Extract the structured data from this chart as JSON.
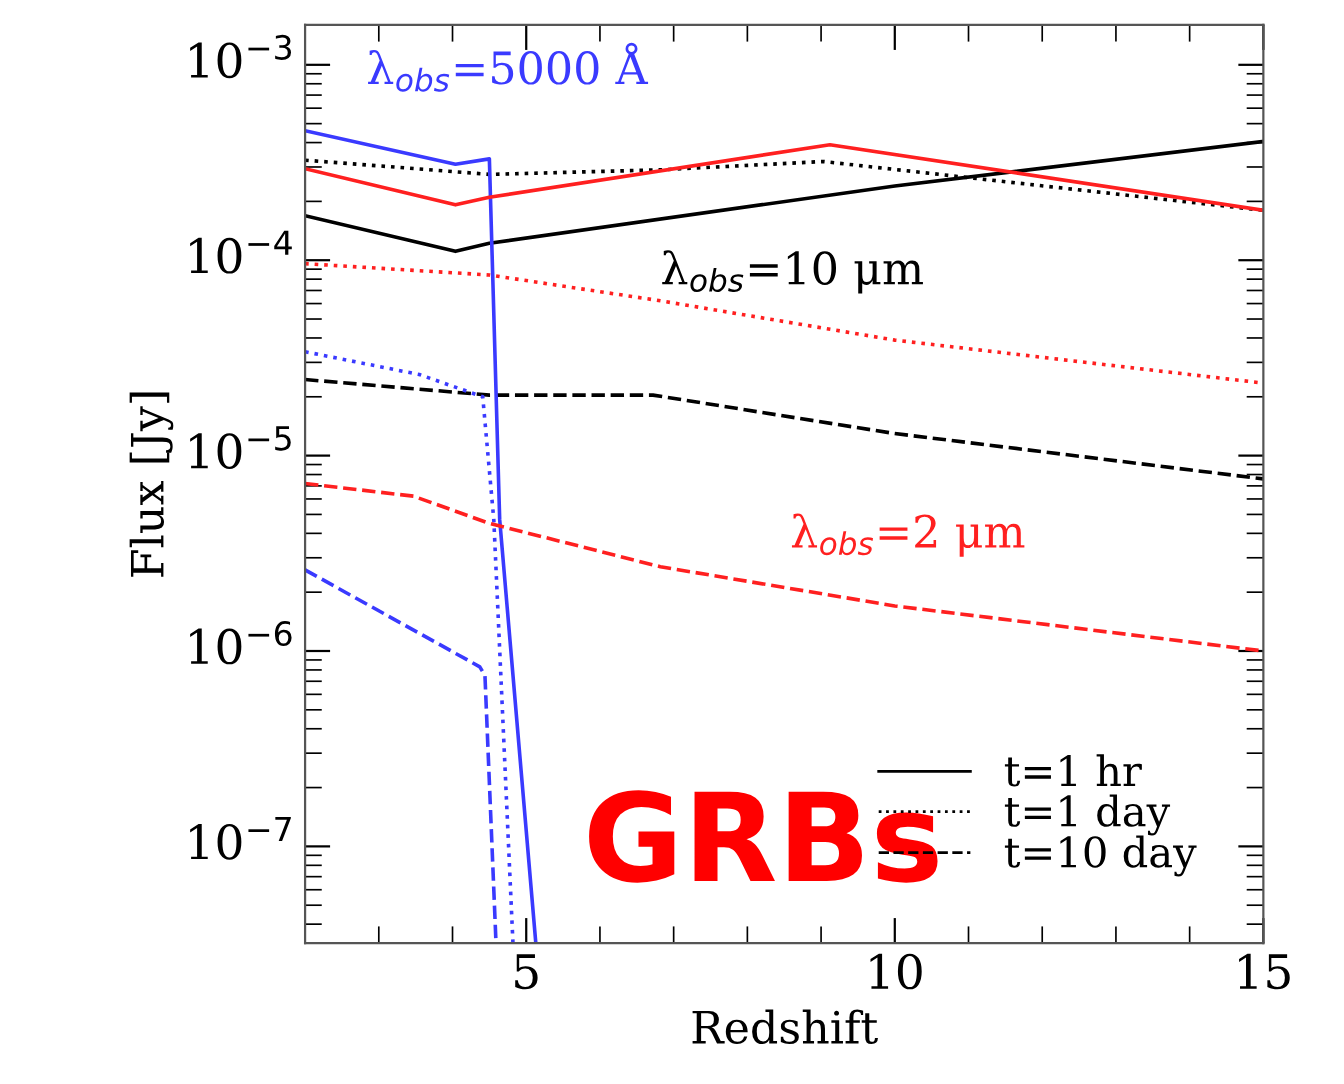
{
  "chart_data": {
    "type": "line",
    "xlabel": "Redshift",
    "ylabel": "Flux [Jy]",
    "log": "y",
    "xlim": [
      2,
      15
    ],
    "xticks": [
      5,
      10,
      15
    ],
    "ylim": [
      3.2e-08,
      0.0016
    ],
    "yticks": [
      {
        "value": 1e-07,
        "label": "10$^{−7}$"
      },
      {
        "value": 1e-06,
        "label": "10$^{−6}$"
      },
      {
        "value": 1e-05,
        "label": "10$^{−5}$"
      },
      {
        "value": 0.0001,
        "label": "10$^{−4}$"
      },
      {
        "value": 0.001,
        "label": "10$^{−3}$"
      }
    ],
    "grid": false,
    "legend": "bottom right",
    "marker": "none",
    "series": [
      {
        "name": "t=1 hr",
        "color": "#000000",
        "line_style": "solid",
        "x": [
          2,
          4.04,
          4.5,
          10,
          15
        ],
        "values": [
          0.000169,
          0.000111,
          0.000122,
          0.00024,
          0.000405
        ]
      },
      {
        "name": "t=1 day",
        "color": "#000000",
        "line_style": "dotted",
        "x": [
          2,
          4.5,
          6.82,
          9.03,
          15
        ],
        "values": [
          0.000325,
          0.000275,
          0.00029,
          0.00032,
          0.00018
        ]
      },
      {
        "name": "t=10 day",
        "color": "#000000",
        "line_style": "dashed",
        "x": [
          2,
          4.5,
          6.72,
          9.98,
          15
        ],
        "values": [
          2.45e-05,
          2.04e-05,
          2.04e-05,
          1.3e-05,
          7.6e-06
        ]
      },
      {
        "color": "#3a3aff",
        "line_style": "solid",
        "x": [
          2,
          4.04,
          4.5,
          4.64,
          5.13
        ],
        "values": [
          0.00046,
          0.00031,
          0.00033,
          4.7e-06,
          3.2e-08
        ]
      },
      {
        "color": "#3a3aff",
        "line_style": "dotted",
        "x": [
          2,
          3.55,
          4.41,
          4.56,
          4.82
        ],
        "values": [
          3.4e-05,
          2.6e-05,
          2e-05,
          4.7e-06,
          3.2e-08
        ]
      },
      {
        "color": "#3a3aff",
        "line_style": "dashed",
        "x": [
          2,
          4.37,
          4.44,
          4.59
        ],
        "values": [
          2.6e-06,
          8.3e-07,
          7.5e-07,
          3.2e-08
        ]
      },
      {
        "color": "#ff2020",
        "line_style": "solid",
        "x": [
          2,
          4.04,
          4.5,
          9.12,
          15
        ],
        "values": [
          0.000294,
          0.000192,
          0.00021,
          0.00039,
          0.00018
        ]
      },
      {
        "color": "#ff2020",
        "line_style": "dotted",
        "x": [
          2,
          4.5,
          6.82,
          10,
          15
        ],
        "values": [
          9.6e-05,
          8.4e-05,
          6.2e-05,
          3.9e-05,
          2.35e-05
        ]
      },
      {
        "color": "#ff2020",
        "line_style": "dashed",
        "x": [
          2,
          3.47,
          4.5,
          6.82,
          10,
          15
        ],
        "values": [
          7.2e-06,
          6.2e-06,
          4.5e-06,
          2.7e-06,
          1.7e-06,
          1e-06
        ]
      }
    ],
    "annotations": [
      {
        "text": "λ$_{obs}$=5000 Å",
        "x": 2.83,
        "y": 0.000395
      },
      {
        "text": "λ$_{obs}$=10 μm",
        "x": 6.82,
        "y": 0.000162
      },
      {
        "text": "λ$_{obs}$=2 μm",
        "x": 8.58,
        "y": 2.1e-06
      },
      "GRBs"
    ]
  }
}
